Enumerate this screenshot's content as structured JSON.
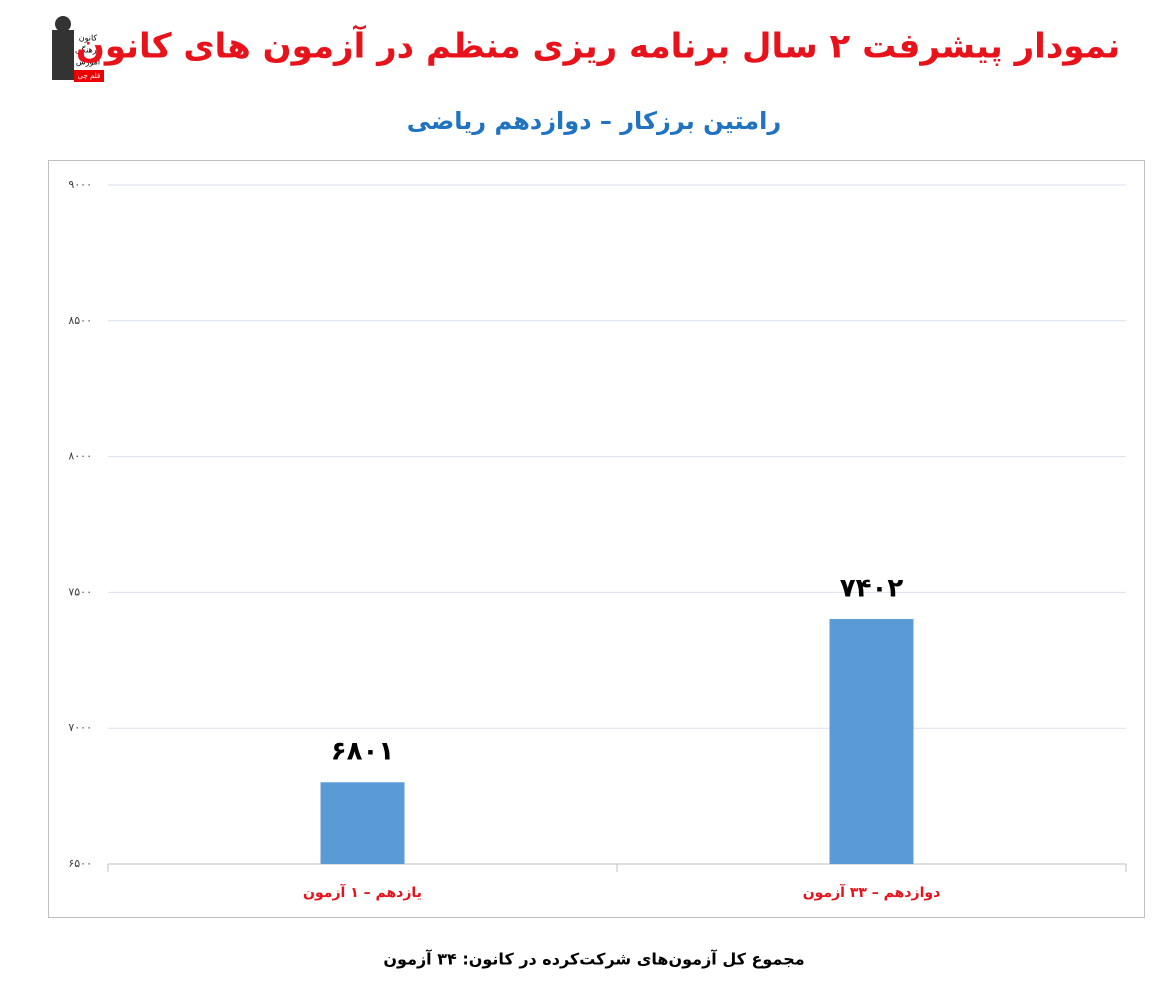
{
  "chart_data": {
    "type": "bar",
    "title": "نمودار پیشرفت ۲ سال برنامه ریزی منظم در آزمون های کانون",
    "subtitle": "رامتین برزکار – دوازدهم ریاضی",
    "categories": [
      "یازدهم – ۱ آزمون",
      "دوازدهم – ۳۳ آزمون"
    ],
    "values": [
      6801,
      7402
    ],
    "value_labels": [
      "۶۸۰۱",
      "۷۴۰۲"
    ],
    "color": "#5b9bd5",
    "ylim": [
      6500,
      9000
    ],
    "yticks": [
      {
        "value": 6500,
        "label": "۶۵۰۰"
      },
      {
        "value": 7000,
        "label": "۷۰۰۰"
      },
      {
        "value": 7500,
        "label": "۷۵۰۰"
      },
      {
        "value": 8000,
        "label": "۸۰۰۰"
      },
      {
        "value": 8500,
        "label": "۸۵۰۰"
      },
      {
        "value": 9000,
        "label": "۹۰۰۰"
      }
    ],
    "grid": true,
    "footnote": "مجموع کل آزمون‌های شرکت‌کرده در کانون: ۳۴ آزمون",
    "logo": [
      "کانون",
      "فرهنگی",
      "آموزش",
      "قلم چی"
    ]
  }
}
